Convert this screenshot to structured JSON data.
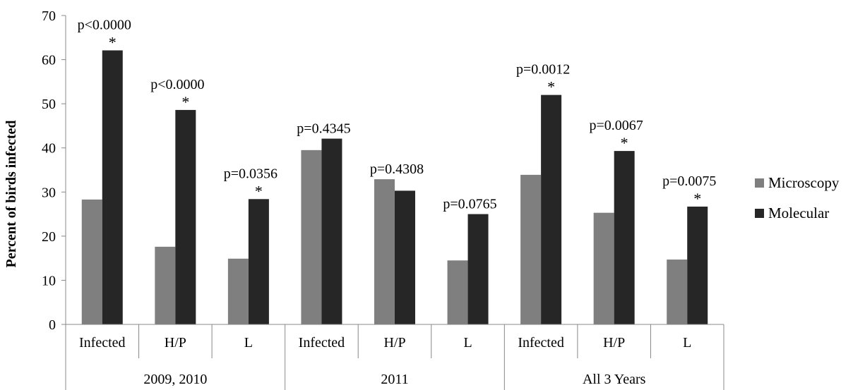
{
  "chart_data": {
    "type": "bar",
    "ylabel": "Percent of birds infected",
    "xlabel": "",
    "ylim": [
      0,
      70
    ],
    "yticks": [
      0,
      10,
      20,
      30,
      40,
      50,
      60,
      70
    ],
    "groups": [
      {
        "label": "2009, 2010",
        "categories": [
          "Infected",
          "H/P",
          "L"
        ]
      },
      {
        "label": "2011",
        "categories": [
          "Infected",
          "H/P",
          "L"
        ]
      },
      {
        "label": "All 3 Years",
        "categories": [
          "Infected",
          "H/P",
          "L"
        ]
      }
    ],
    "categories": [
      "Infected",
      "H/P",
      "L",
      "Infected",
      "H/P",
      "L",
      "Infected",
      "H/P",
      "L"
    ],
    "series": [
      {
        "name": "Microscopy",
        "color": "#7f7f7f",
        "values": [
          28.3,
          17.6,
          14.9,
          39.5,
          32.9,
          14.5,
          33.9,
          25.3,
          14.7
        ]
      },
      {
        "name": "Molecular",
        "color": "#262626",
        "values": [
          62.1,
          48.6,
          28.4,
          42.1,
          30.3,
          25.0,
          52.0,
          39.3,
          26.7
        ]
      }
    ],
    "annotations": [
      {
        "p": "p<0.0000",
        "star": "*"
      },
      {
        "p": "p<0.0000",
        "star": "*"
      },
      {
        "p": "p=0.0356",
        "star": "*"
      },
      {
        "p": "p=0.4345",
        "star": ""
      },
      {
        "p": "p=0.4308",
        "star": ""
      },
      {
        "p": "p=0.0765",
        "star": ""
      },
      {
        "p": "p=0.0012",
        "star": "*"
      },
      {
        "p": "p=0.0067",
        "star": "*"
      },
      {
        "p": "p=0.0075",
        "star": "*"
      }
    ],
    "legend_position": "right",
    "grid": false
  }
}
